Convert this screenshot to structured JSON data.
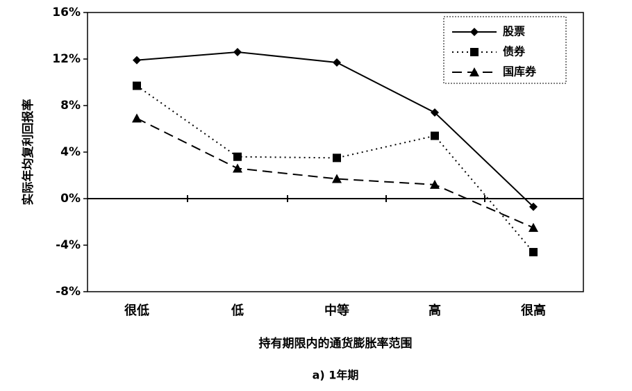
{
  "chart_data": {
    "type": "line",
    "categories": [
      "很低",
      "低",
      "中等",
      "高",
      "很高"
    ],
    "series": [
      {
        "name": "股票",
        "values": [
          11.9,
          12.6,
          11.7,
          7.4,
          -0.7
        ],
        "marker": "diamond",
        "dash": "solid"
      },
      {
        "name": "债券",
        "values": [
          9.7,
          3.6,
          3.5,
          5.4,
          -4.6
        ],
        "marker": "square",
        "dash": "dotted"
      },
      {
        "name": "国库券",
        "values": [
          6.9,
          2.6,
          1.7,
          1.2,
          -2.5
        ],
        "marker": "triangle",
        "dash": "dashed"
      }
    ],
    "yticks": [
      "16%",
      "12%",
      "8%",
      "4%",
      "0%",
      "-4%",
      "-8%"
    ],
    "ylim": [
      -8,
      16
    ],
    "ylabel": "实际年均复利回报率",
    "xlabel": "持有期限内的通货膨胀率范围",
    "caption": "a) 1年期",
    "legend_position": "top-right",
    "grid": false
  }
}
